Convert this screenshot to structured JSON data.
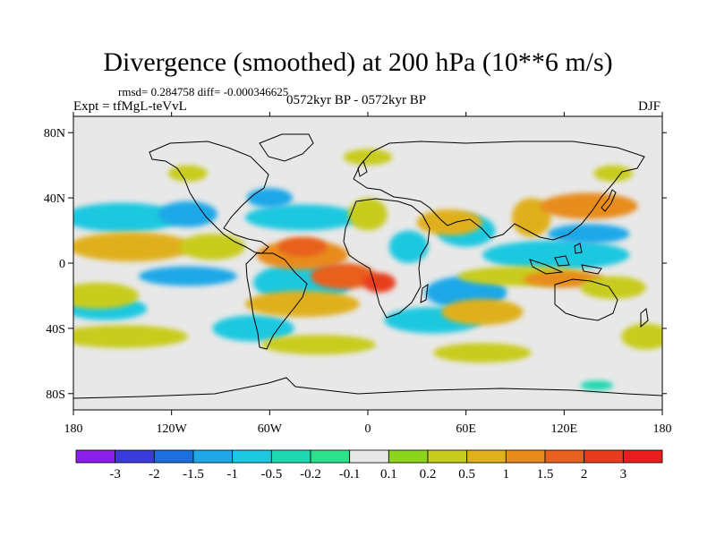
{
  "header": {
    "title": "Divergence (smoothed) at 200 hPa (10**6 m/s)",
    "stats": "rmsd= 0.284758 diff= -0.000346625",
    "experiment": "Expt = tfMgL-teVvL",
    "period": "0572kyr BP - 0572kyr BP",
    "season": "DJF"
  },
  "chart_data": {
    "type": "heatmap",
    "title": "Divergence (smoothed) at 200 hPa (10**6 m/s)",
    "xlim": [
      -180,
      180
    ],
    "ylim": [
      -90,
      90
    ],
    "x_ticks": [
      {
        "value": -180,
        "label": "180"
      },
      {
        "value": -120,
        "label": "120W"
      },
      {
        "value": -60,
        "label": "60W"
      },
      {
        "value": 0,
        "label": "0"
      },
      {
        "value": 60,
        "label": "60E"
      },
      {
        "value": 120,
        "label": "120E"
      },
      {
        "value": 180,
        "label": "180"
      }
    ],
    "y_ticks": [
      {
        "value": 80,
        "label": "80N"
      },
      {
        "value": 40,
        "label": "40N"
      },
      {
        "value": 0,
        "label": "0"
      },
      {
        "value": -40,
        "label": "40S"
      },
      {
        "value": -80,
        "label": "80S"
      }
    ],
    "colorbar": {
      "levels": [
        "-3",
        "-2",
        "-1.5",
        "-1",
        "-0.5",
        "-0.2",
        "-0.1",
        "0.1",
        "0.2",
        "0.5",
        "1",
        "1.5",
        "2",
        "3"
      ],
      "colors": [
        "#8b1fe8",
        "#3b3bdc",
        "#1e6fde",
        "#1ea8e8",
        "#1ec8e0",
        "#1ed8b0",
        "#2ee08c",
        "#e8e8e8",
        "#8cd41e",
        "#c8cc1e",
        "#e0b01e",
        "#e88c1e",
        "#e8601e",
        "#e83c1e",
        "#e81e1e"
      ]
    },
    "field_blobs": [
      {
        "lon": -150,
        "lat": 28,
        "rx": 36,
        "ry": 9,
        "level": 4
      },
      {
        "lon": -110,
        "lat": 30,
        "rx": 18,
        "ry": 8,
        "level": 3
      },
      {
        "lon": -40,
        "lat": 28,
        "rx": 35,
        "ry": 8,
        "level": 4
      },
      {
        "lon": -60,
        "lat": 40,
        "rx": 14,
        "ry": 6,
        "level": 3
      },
      {
        "lon": 25,
        "lat": 10,
        "rx": 12,
        "ry": 10,
        "level": 4
      },
      {
        "lon": 60,
        "lat": 20,
        "rx": 18,
        "ry": 10,
        "level": 4
      },
      {
        "lon": 115,
        "lat": 5,
        "rx": 45,
        "ry": 9,
        "level": 4
      },
      {
        "lon": 135,
        "lat": 18,
        "rx": 25,
        "ry": 6,
        "level": 3
      },
      {
        "lon": -40,
        "lat": -12,
        "rx": 30,
        "ry": 12,
        "level": 4
      },
      {
        "lon": -110,
        "lat": -8,
        "rx": 30,
        "ry": 6,
        "level": 3
      },
      {
        "lon": 60,
        "lat": -18,
        "rx": 25,
        "ry": 10,
        "level": 3
      },
      {
        "lon": 40,
        "lat": -35,
        "rx": 30,
        "ry": 8,
        "level": 4
      },
      {
        "lon": -160,
        "lat": -28,
        "rx": 25,
        "ry": 7,
        "level": 4
      },
      {
        "lon": -70,
        "lat": -40,
        "rx": 25,
        "ry": 8,
        "level": 4
      },
      {
        "lon": -145,
        "lat": 10,
        "rx": 38,
        "ry": 9,
        "level": 10
      },
      {
        "lon": -95,
        "lat": 10,
        "rx": 20,
        "ry": 8,
        "level": 9
      },
      {
        "lon": -40,
        "lat": 5,
        "rx": 28,
        "ry": 9,
        "level": 11
      },
      {
        "lon": -15,
        "lat": -8,
        "rx": 20,
        "ry": 8,
        "level": 12
      },
      {
        "lon": 7,
        "lat": -12,
        "rx": 10,
        "ry": 6,
        "level": 13
      },
      {
        "lon": -40,
        "lat": 10,
        "rx": 15,
        "ry": 6,
        "level": 12
      },
      {
        "lon": 50,
        "lat": 25,
        "rx": 20,
        "ry": 8,
        "level": 10
      },
      {
        "lon": 0,
        "lat": 30,
        "rx": 12,
        "ry": 10,
        "level": 9
      },
      {
        "lon": 100,
        "lat": 28,
        "rx": 12,
        "ry": 12,
        "level": 10
      },
      {
        "lon": 135,
        "lat": 35,
        "rx": 30,
        "ry": 8,
        "level": 11
      },
      {
        "lon": 95,
        "lat": -8,
        "rx": 40,
        "ry": 6,
        "level": 9
      },
      {
        "lon": 120,
        "lat": -10,
        "rx": 25,
        "ry": 5,
        "level": 11
      },
      {
        "lon": -165,
        "lat": -20,
        "rx": 25,
        "ry": 8,
        "level": 9
      },
      {
        "lon": -40,
        "lat": -25,
        "rx": 35,
        "ry": 8,
        "level": 10
      },
      {
        "lon": 70,
        "lat": -30,
        "rx": 25,
        "ry": 8,
        "level": 10
      },
      {
        "lon": 150,
        "lat": -15,
        "rx": 20,
        "ry": 7,
        "level": 9
      },
      {
        "lon": -150,
        "lat": -45,
        "rx": 40,
        "ry": 7,
        "level": 9
      },
      {
        "lon": -30,
        "lat": -50,
        "rx": 35,
        "ry": 6,
        "level": 9
      },
      {
        "lon": 70,
        "lat": -55,
        "rx": 30,
        "ry": 6,
        "level": 9
      },
      {
        "lon": 170,
        "lat": -45,
        "rx": 15,
        "ry": 8,
        "level": 9
      },
      {
        "lon": 0,
        "lat": 65,
        "rx": 15,
        "ry": 5,
        "level": 9
      },
      {
        "lon": -110,
        "lat": 55,
        "rx": 12,
        "ry": 5,
        "level": 9
      },
      {
        "lon": 150,
        "lat": 55,
        "rx": 12,
        "ry": 5,
        "level": 9
      },
      {
        "lon": 140,
        "lat": -75,
        "rx": 10,
        "ry": 3,
        "level": 5
      }
    ]
  }
}
